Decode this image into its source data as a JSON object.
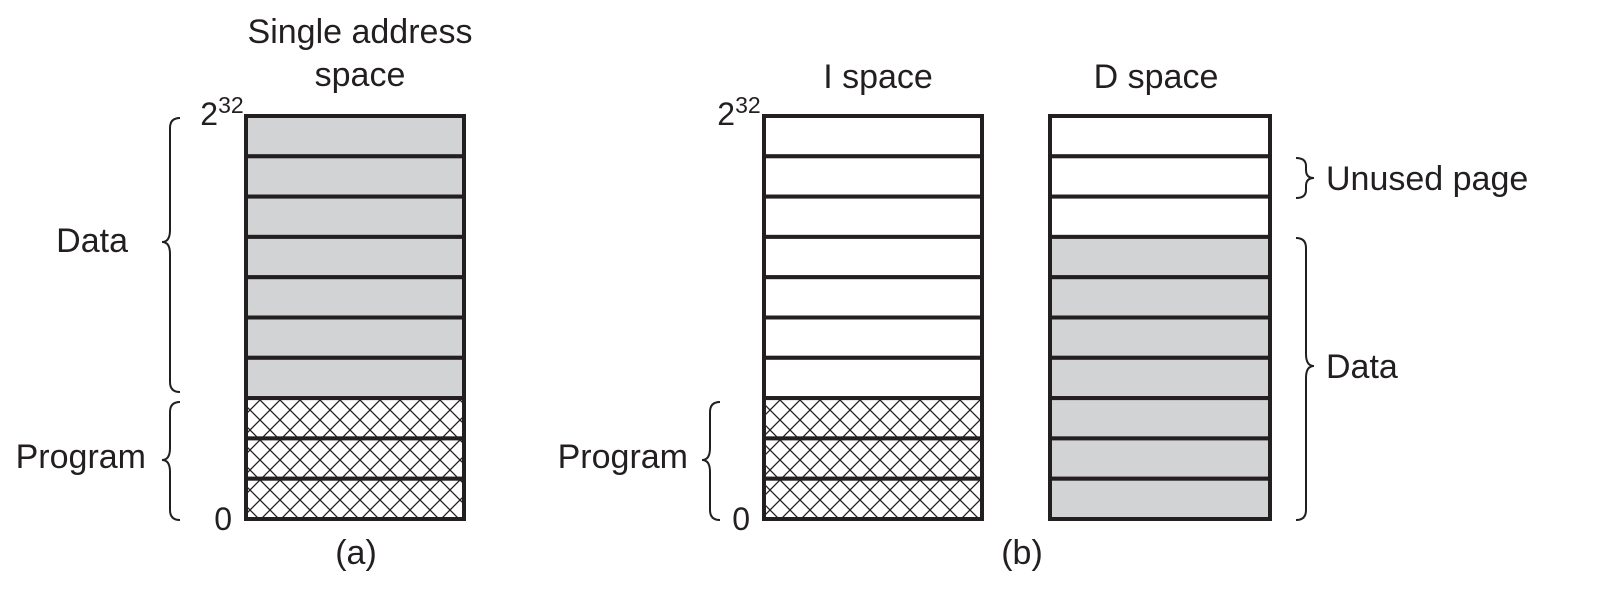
{
  "panel_a": {
    "title_line1": "Single address",
    "title_line2": "space",
    "top_base": "2",
    "top_exp": "32",
    "bottom": "0",
    "label_data": "Data",
    "label_program": "Program",
    "caption": "(a)",
    "pages": [
      "data",
      "data",
      "data",
      "data",
      "data",
      "data",
      "data",
      "program",
      "program",
      "program"
    ]
  },
  "panel_b": {
    "i_title": "I space",
    "d_title": "D space",
    "top_base": "2",
    "top_exp": "32",
    "bottom": "0",
    "label_program": "Program",
    "label_unused": "Unused page",
    "label_data": "Data",
    "caption": "(b)",
    "i_pages": [
      "unused",
      "unused",
      "unused",
      "unused",
      "unused",
      "unused",
      "unused",
      "program",
      "program",
      "program"
    ],
    "d_pages": [
      "unused",
      "unused",
      "unused",
      "data",
      "data",
      "data",
      "data",
      "data",
      "data",
      "data"
    ]
  },
  "colors": {
    "data_fill": "#d1d3d4",
    "unused_fill": "#ffffff",
    "program_hatch": "#231f20",
    "outline": "#231f20"
  }
}
